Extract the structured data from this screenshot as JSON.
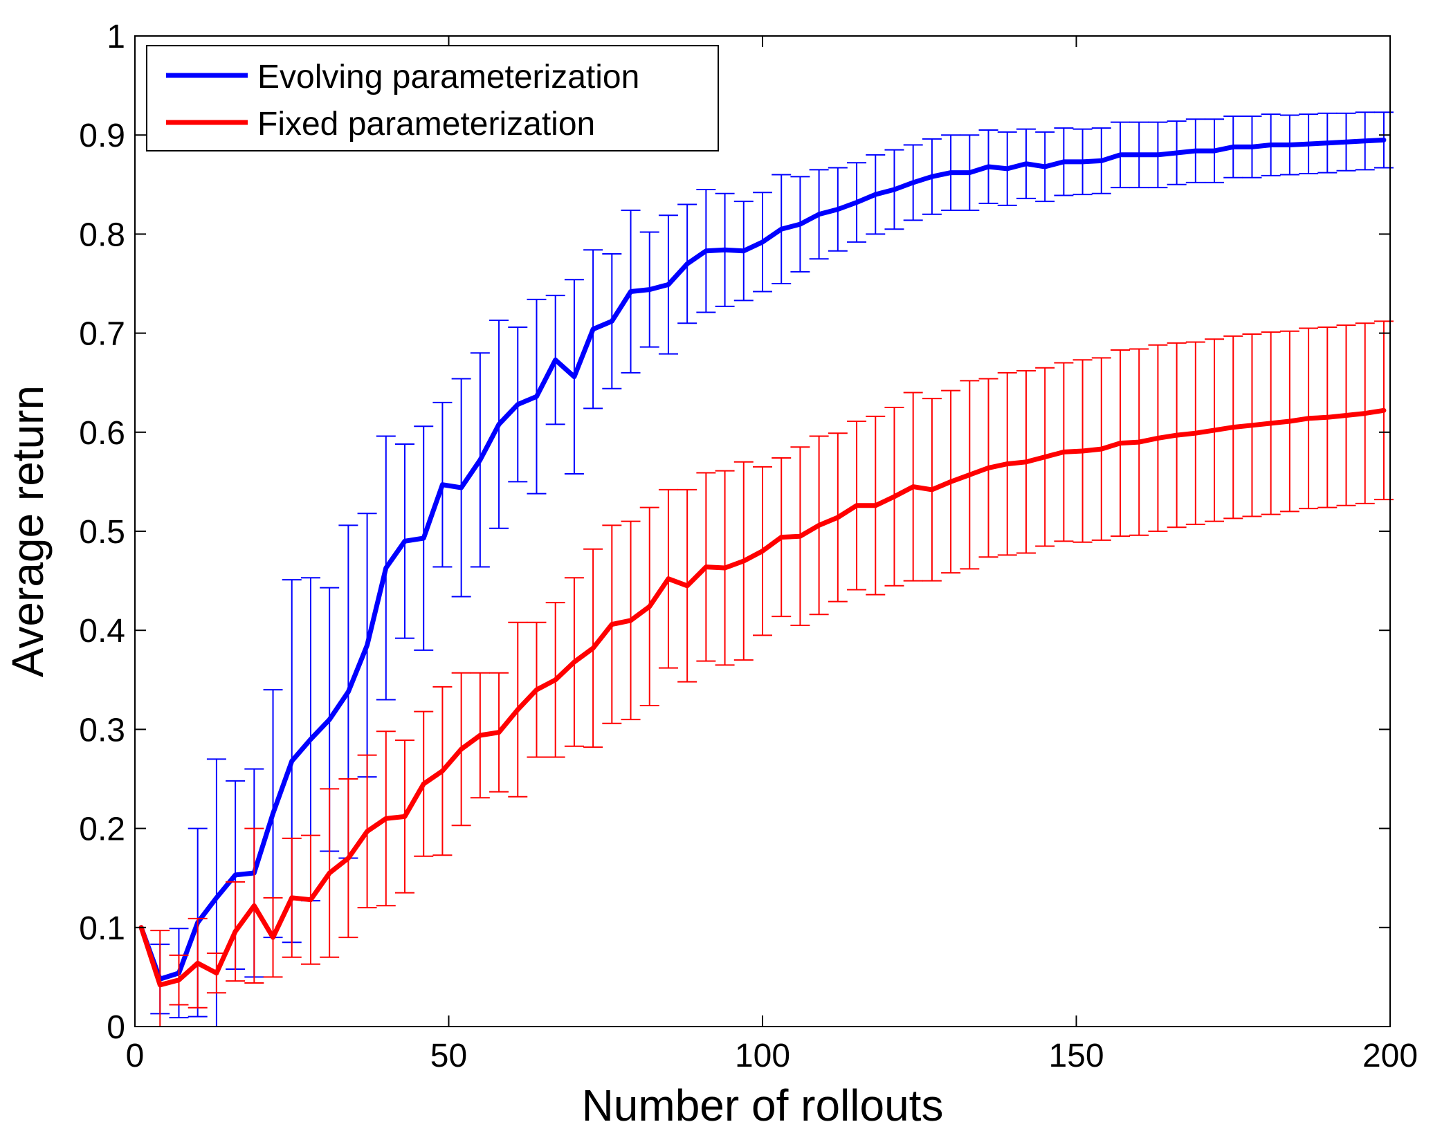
{
  "chart_data": {
    "type": "line",
    "title": "",
    "xlabel": "Number of rollouts",
    "ylabel": "Average return",
    "xlim": [
      0,
      200
    ],
    "ylim": [
      0,
      1
    ],
    "xticks": [
      0,
      50,
      100,
      150,
      200
    ],
    "xtick_labels": [
      "0",
      "50",
      "100",
      "150",
      "200"
    ],
    "yticks": [
      0,
      0.1,
      0.2,
      0.3,
      0.4,
      0.5,
      0.6,
      0.7,
      0.8,
      0.9,
      1
    ],
    "ytick_labels": [
      "0",
      "0.1",
      "0.2",
      "0.3",
      "0.4",
      "0.5",
      "0.6",
      "0.7",
      "0.8",
      "0.9",
      "1"
    ],
    "grid": false,
    "legend_position": "top-left",
    "x": [
      1,
      4,
      7,
      10,
      13,
      16,
      19,
      22,
      25,
      28,
      31,
      34,
      37,
      40,
      43,
      46,
      49,
      52,
      55,
      58,
      61,
      64,
      67,
      70,
      73,
      76,
      79,
      82,
      85,
      88,
      91,
      94,
      97,
      100,
      103,
      106,
      109,
      112,
      115,
      118,
      121,
      124,
      127,
      130,
      133,
      136,
      139,
      142,
      145,
      148,
      151,
      154,
      157,
      160,
      163,
      166,
      169,
      172,
      175,
      178,
      181,
      184,
      187,
      190,
      193,
      196,
      199
    ],
    "series": [
      {
        "name": "Evolving parameterization",
        "color": "#0000ff",
        "values": [
          0.1,
          0.048,
          0.054,
          0.105,
          0.13,
          0.153,
          0.155,
          0.215,
          0.268,
          0.29,
          0.31,
          0.338,
          0.385,
          0.463,
          0.49,
          0.493,
          0.547,
          0.544,
          0.572,
          0.608,
          0.628,
          0.636,
          0.673,
          0.656,
          0.704,
          0.712,
          0.742,
          0.744,
          0.749,
          0.77,
          0.783,
          0.784,
          0.783,
          0.792,
          0.805,
          0.81,
          0.82,
          0.825,
          0.832,
          0.84,
          0.845,
          0.852,
          0.858,
          0.862,
          0.862,
          0.868,
          0.866,
          0.871,
          0.868,
          0.873,
          0.873,
          0.874,
          0.88,
          0.88,
          0.88,
          0.882,
          0.884,
          0.884,
          0.888,
          0.888,
          0.89,
          0.89,
          0.891,
          0.892,
          0.893,
          0.894,
          0.895
        ],
        "errors": [
          0.0,
          0.035,
          0.045,
          0.095,
          0.14,
          0.095,
          0.105,
          0.125,
          0.183,
          0.163,
          0.133,
          0.168,
          0.133,
          0.133,
          0.098,
          0.113,
          0.083,
          0.11,
          0.108,
          0.105,
          0.078,
          0.098,
          0.065,
          0.098,
          0.08,
          0.068,
          0.082,
          0.058,
          0.07,
          0.06,
          0.062,
          0.057,
          0.05,
          0.05,
          0.055,
          0.048,
          0.045,
          0.042,
          0.04,
          0.04,
          0.04,
          0.038,
          0.038,
          0.038,
          0.038,
          0.037,
          0.037,
          0.035,
          0.035,
          0.034,
          0.033,
          0.033,
          0.033,
          0.033,
          0.033,
          0.032,
          0.032,
          0.032,
          0.031,
          0.031,
          0.031,
          0.03,
          0.03,
          0.03,
          0.029,
          0.029,
          0.028
        ]
      },
      {
        "name": "Fixed parameterization",
        "color": "#ff0000",
        "values": [
          0.1,
          0.042,
          0.047,
          0.064,
          0.054,
          0.096,
          0.122,
          0.09,
          0.13,
          0.128,
          0.155,
          0.17,
          0.197,
          0.21,
          0.212,
          0.245,
          0.258,
          0.28,
          0.294,
          0.297,
          0.32,
          0.34,
          0.35,
          0.368,
          0.382,
          0.406,
          0.41,
          0.424,
          0.452,
          0.445,
          0.464,
          0.463,
          0.47,
          0.48,
          0.494,
          0.495,
          0.506,
          0.514,
          0.526,
          0.526,
          0.535,
          0.545,
          0.542,
          0.55,
          0.557,
          0.564,
          0.568,
          0.57,
          0.575,
          0.58,
          0.581,
          0.583,
          0.589,
          0.59,
          0.594,
          0.597,
          0.599,
          0.602,
          0.605,
          0.607,
          0.609,
          0.611,
          0.614,
          0.615,
          0.617,
          0.619,
          0.622
        ],
        "errors": [
          0.0,
          0.055,
          0.025,
          0.045,
          0.02,
          0.05,
          0.078,
          0.04,
          0.06,
          0.065,
          0.085,
          0.08,
          0.077,
          0.088,
          0.077,
          0.073,
          0.085,
          0.077,
          0.063,
          0.06,
          0.088,
          0.068,
          0.078,
          0.085,
          0.1,
          0.1,
          0.1,
          0.1,
          0.09,
          0.097,
          0.095,
          0.098,
          0.1,
          0.085,
          0.08,
          0.09,
          0.09,
          0.085,
          0.085,
          0.09,
          0.09,
          0.095,
          0.092,
          0.092,
          0.095,
          0.09,
          0.092,
          0.092,
          0.09,
          0.09,
          0.092,
          0.092,
          0.094,
          0.094,
          0.094,
          0.093,
          0.092,
          0.092,
          0.092,
          0.092,
          0.092,
          0.091,
          0.091,
          0.091,
          0.091,
          0.091,
          0.09
        ]
      }
    ]
  }
}
